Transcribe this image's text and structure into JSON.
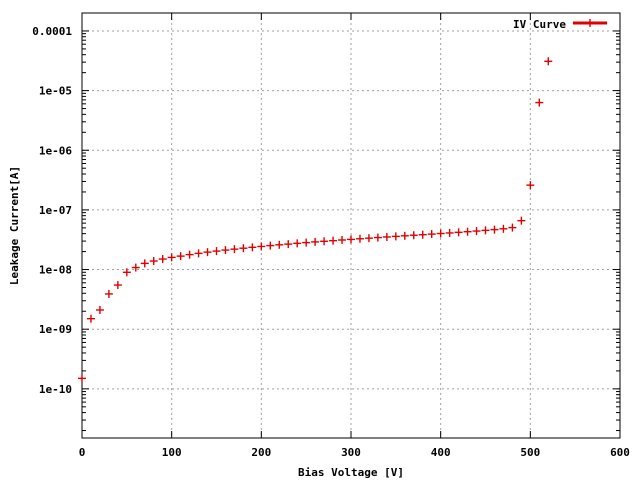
{
  "chart_data": {
    "type": "scatter",
    "title": "",
    "xlabel": "Bias Voltage [V]",
    "ylabel": "Leakage Current[A]",
    "xlim": [
      0,
      600
    ],
    "ylim": [
      1.5e-11,
      0.0002
    ],
    "yscale": "log",
    "grid": true,
    "legend": "top-right",
    "x_ticks": [
      0,
      100,
      200,
      300,
      400,
      500,
      600
    ],
    "x_tick_labels": [
      "0",
      "100",
      "200",
      "300",
      "400",
      "500",
      "600"
    ],
    "y_ticks": [
      1e-10,
      1e-09,
      1e-08,
      1e-07,
      1e-06,
      1e-05,
      0.0001
    ],
    "y_tick_labels": [
      "1e-10",
      "1e-09",
      "1e-08",
      "1e-07",
      "1e-06",
      "1e-05",
      "0.0001"
    ],
    "series": [
      {
        "name": "IV Curve",
        "color": "#e00000",
        "marker": "plus",
        "x": [
          0,
          10,
          20,
          30,
          40,
          50,
          60,
          70,
          80,
          90,
          100,
          110,
          120,
          130,
          140,
          150,
          160,
          170,
          180,
          190,
          200,
          210,
          220,
          230,
          240,
          250,
          260,
          270,
          280,
          290,
          300,
          310,
          320,
          330,
          340,
          350,
          360,
          370,
          380,
          390,
          400,
          410,
          420,
          430,
          440,
          450,
          460,
          470,
          480,
          490,
          500,
          510,
          520
        ],
        "y": [
          1.5e-10,
          1.5e-09,
          2.1e-09,
          3.9e-09,
          5.5e-09,
          9e-09,
          1.08e-08,
          1.27e-08,
          1.39e-08,
          1.5e-08,
          1.6e-08,
          1.68e-08,
          1.78e-08,
          1.87e-08,
          1.96e-08,
          2.04e-08,
          2.12e-08,
          2.2e-08,
          2.28e-08,
          2.36e-08,
          2.44e-08,
          2.52e-08,
          2.6e-08,
          2.67e-08,
          2.75e-08,
          2.83e-08,
          2.91e-08,
          2.98e-08,
          3.05e-08,
          3.13e-08,
          3.2e-08,
          3.28e-08,
          3.36e-08,
          3.44e-08,
          3.52e-08,
          3.6e-08,
          3.68e-08,
          3.76e-08,
          3.84e-08,
          3.93e-08,
          4.02e-08,
          4.11e-08,
          4.21e-08,
          4.31e-08,
          4.42e-08,
          4.54e-08,
          4.67e-08,
          4.82e-08,
          5.05e-08,
          6.6e-08,
          2.6e-07,
          6.3e-06,
          3.1e-05
        ]
      }
    ]
  }
}
